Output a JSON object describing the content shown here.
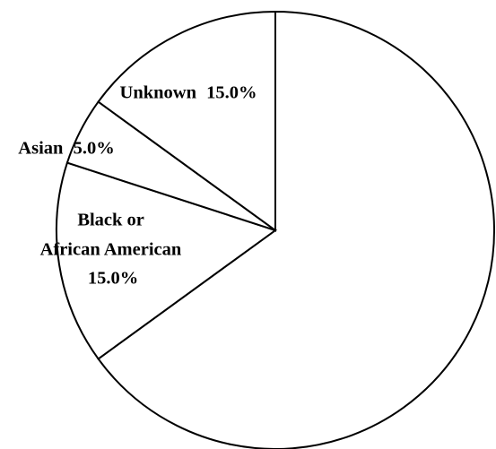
{
  "chart_data": {
    "type": "pie",
    "title": "",
    "slices": [
      {
        "label": "",
        "value": 65.0,
        "value_text": ""
      },
      {
        "label": "Black or African American",
        "value": 15.0,
        "value_text": "15.0%"
      },
      {
        "label": "Asian",
        "value": 5.0,
        "value_text": "5.0%"
      },
      {
        "label": "Unknown",
        "value": 15.0,
        "value_text": "15.0%"
      }
    ],
    "start": "12 o'clock",
    "direction": "clockwise",
    "fill_color": "#ffffff",
    "stroke_color": "#000000",
    "legend": "none"
  }
}
